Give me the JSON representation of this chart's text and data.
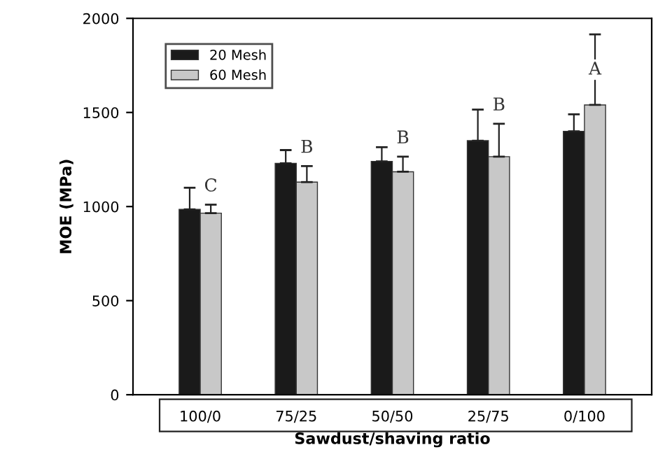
{
  "chart_data": {
    "type": "bar",
    "xlabel": "Sawdust/shaving ratio",
    "ylabel": "MOE (MPa)",
    "categories": [
      "100/0",
      "75/25",
      "50/50",
      "25/75",
      "0/100"
    ],
    "series": [
      {
        "name": "20 Mesh",
        "color": "#1a1a1a",
        "values": [
          985,
          1230,
          1240,
          1350,
          1400
        ],
        "errors": [
          [
            985,
            1100
          ],
          [
            1230,
            1300
          ],
          [
            1240,
            1315
          ],
          [
            1350,
            1515
          ],
          [
            1400,
            1490
          ]
        ]
      },
      {
        "name": "60 Mesh",
        "color": "#c8c8c8",
        "values": [
          965,
          1130,
          1185,
          1265,
          1540
        ],
        "errors": [
          [
            965,
            1010
          ],
          [
            1130,
            1215
          ],
          [
            1185,
            1265
          ],
          [
            1265,
            1440
          ],
          [
            1540,
            1915
          ]
        ]
      }
    ],
    "annotations": [
      "C",
      "B",
      "B",
      "B",
      "A"
    ],
    "ylim": [
      0,
      2000
    ],
    "yticks": [
      0,
      500,
      1000,
      1500,
      2000
    ],
    "grid": false,
    "legend": "top left"
  }
}
